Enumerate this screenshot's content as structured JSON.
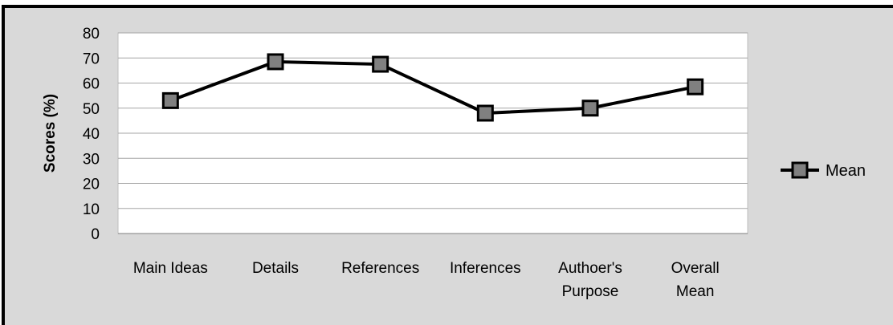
{
  "chart_data": {
    "type": "line",
    "title": "",
    "xlabel": "",
    "ylabel": "Scores (%)",
    "ylim": [
      0,
      80
    ],
    "yticks": [
      0,
      10,
      20,
      30,
      40,
      50,
      60,
      70,
      80
    ],
    "grid": true,
    "legend_position": "right",
    "categories": [
      [
        "Main Ideas"
      ],
      [
        "Details"
      ],
      [
        "References"
      ],
      [
        "Inferences"
      ],
      [
        "Authoer's",
        "Purpose"
      ],
      [
        "Overall",
        "Mean"
      ]
    ],
    "series": [
      {
        "name": "Mean",
        "values": [
          53,
          68.5,
          67.5,
          48,
          50,
          58.5
        ],
        "color": "#000000",
        "marker_fill": "#808080"
      }
    ]
  }
}
